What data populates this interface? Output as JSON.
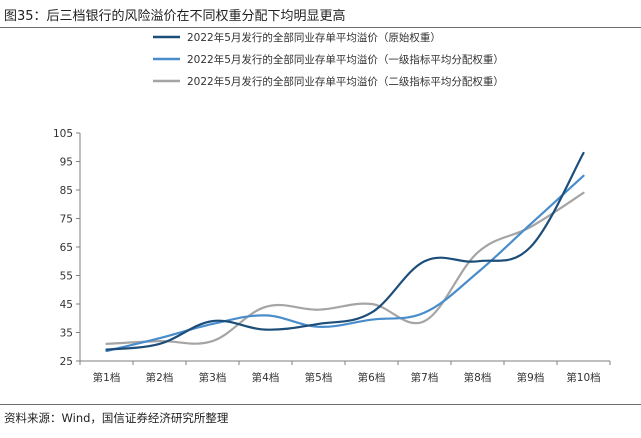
{
  "title": "图35：后三档银行的风险溢价在不同权重分配下均明显更高",
  "source": "资料来源：Wind，国信证券经济研究所整理",
  "chart_data": {
    "type": "line",
    "categories": [
      "第1档",
      "第2档",
      "第3档",
      "第4档",
      "第5档",
      "第6档",
      "第7档",
      "第8档",
      "第9档",
      "第10档"
    ],
    "series": [
      {
        "name": "2022年5月发行的全部同业存单平均溢价（原始权重）",
        "color": "#1d4e79",
        "values": [
          29,
          31,
          39,
          36,
          38,
          42,
          60,
          60,
          65,
          98
        ]
      },
      {
        "name": "2022年5月发行的全部同业存单平均溢价（一级指标平均分配权重）",
        "color": "#4a8dcb",
        "values": [
          28.5,
          33,
          38,
          41,
          37,
          39.5,
          42,
          56,
          73,
          90
        ]
      },
      {
        "name": "2022年5月发行的全部同业存单平均溢价（二级指标平均分配权重）",
        "color": "#a5a5a5",
        "values": [
          31,
          32,
          32,
          44,
          43,
          45,
          39,
          63,
          72,
          84
        ]
      }
    ],
    "yticks": [
      25,
      35,
      45,
      55,
      65,
      75,
      85,
      95,
      105
    ],
    "ylim": [
      25,
      105
    ],
    "grid": false,
    "legend_position": "top"
  }
}
